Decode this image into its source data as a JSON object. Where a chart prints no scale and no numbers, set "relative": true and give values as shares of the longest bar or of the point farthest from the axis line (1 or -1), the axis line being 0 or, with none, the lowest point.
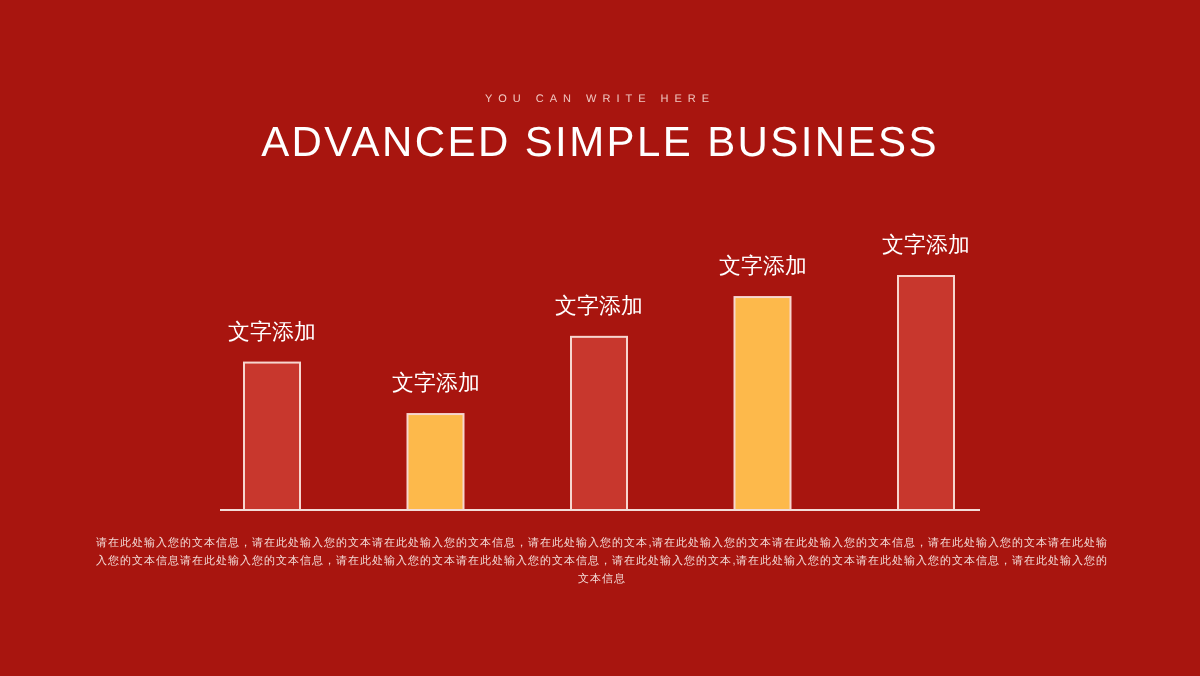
{
  "chart_data": {
    "type": "bar",
    "relative": true,
    "subtitle": "YOU CAN WRITE HERE",
    "title": "ADVANCED SIMPLE BUSINESS",
    "categories": [
      "文字添加",
      "文字添加",
      "文字添加",
      "文字添加",
      "文字添加"
    ],
    "values": [
      0.63,
      0.41,
      0.74,
      0.91,
      1
    ],
    "colors": [
      "#c8372d",
      "#fdb94b",
      "#c8372d",
      "#fdb94b",
      "#c8372d"
    ],
    "annotations": [
      "请在此处输入您的文本信息，请在此处输入您的文本请在此处输入您的文本信息，请在此处输入您的文本,请在此处输入您的文本请在此处输入您的文本信息，请在此处输入您的文本请在此处输入您的文本信息请在此处输入您的文本信息，请在此处输入您的文本请在此处输入您的文本信息，请在此处输入您的文本,请在此处输入您的文本请在此处输入您的文本信息，请在此处输入您的文本信息"
    ]
  }
}
